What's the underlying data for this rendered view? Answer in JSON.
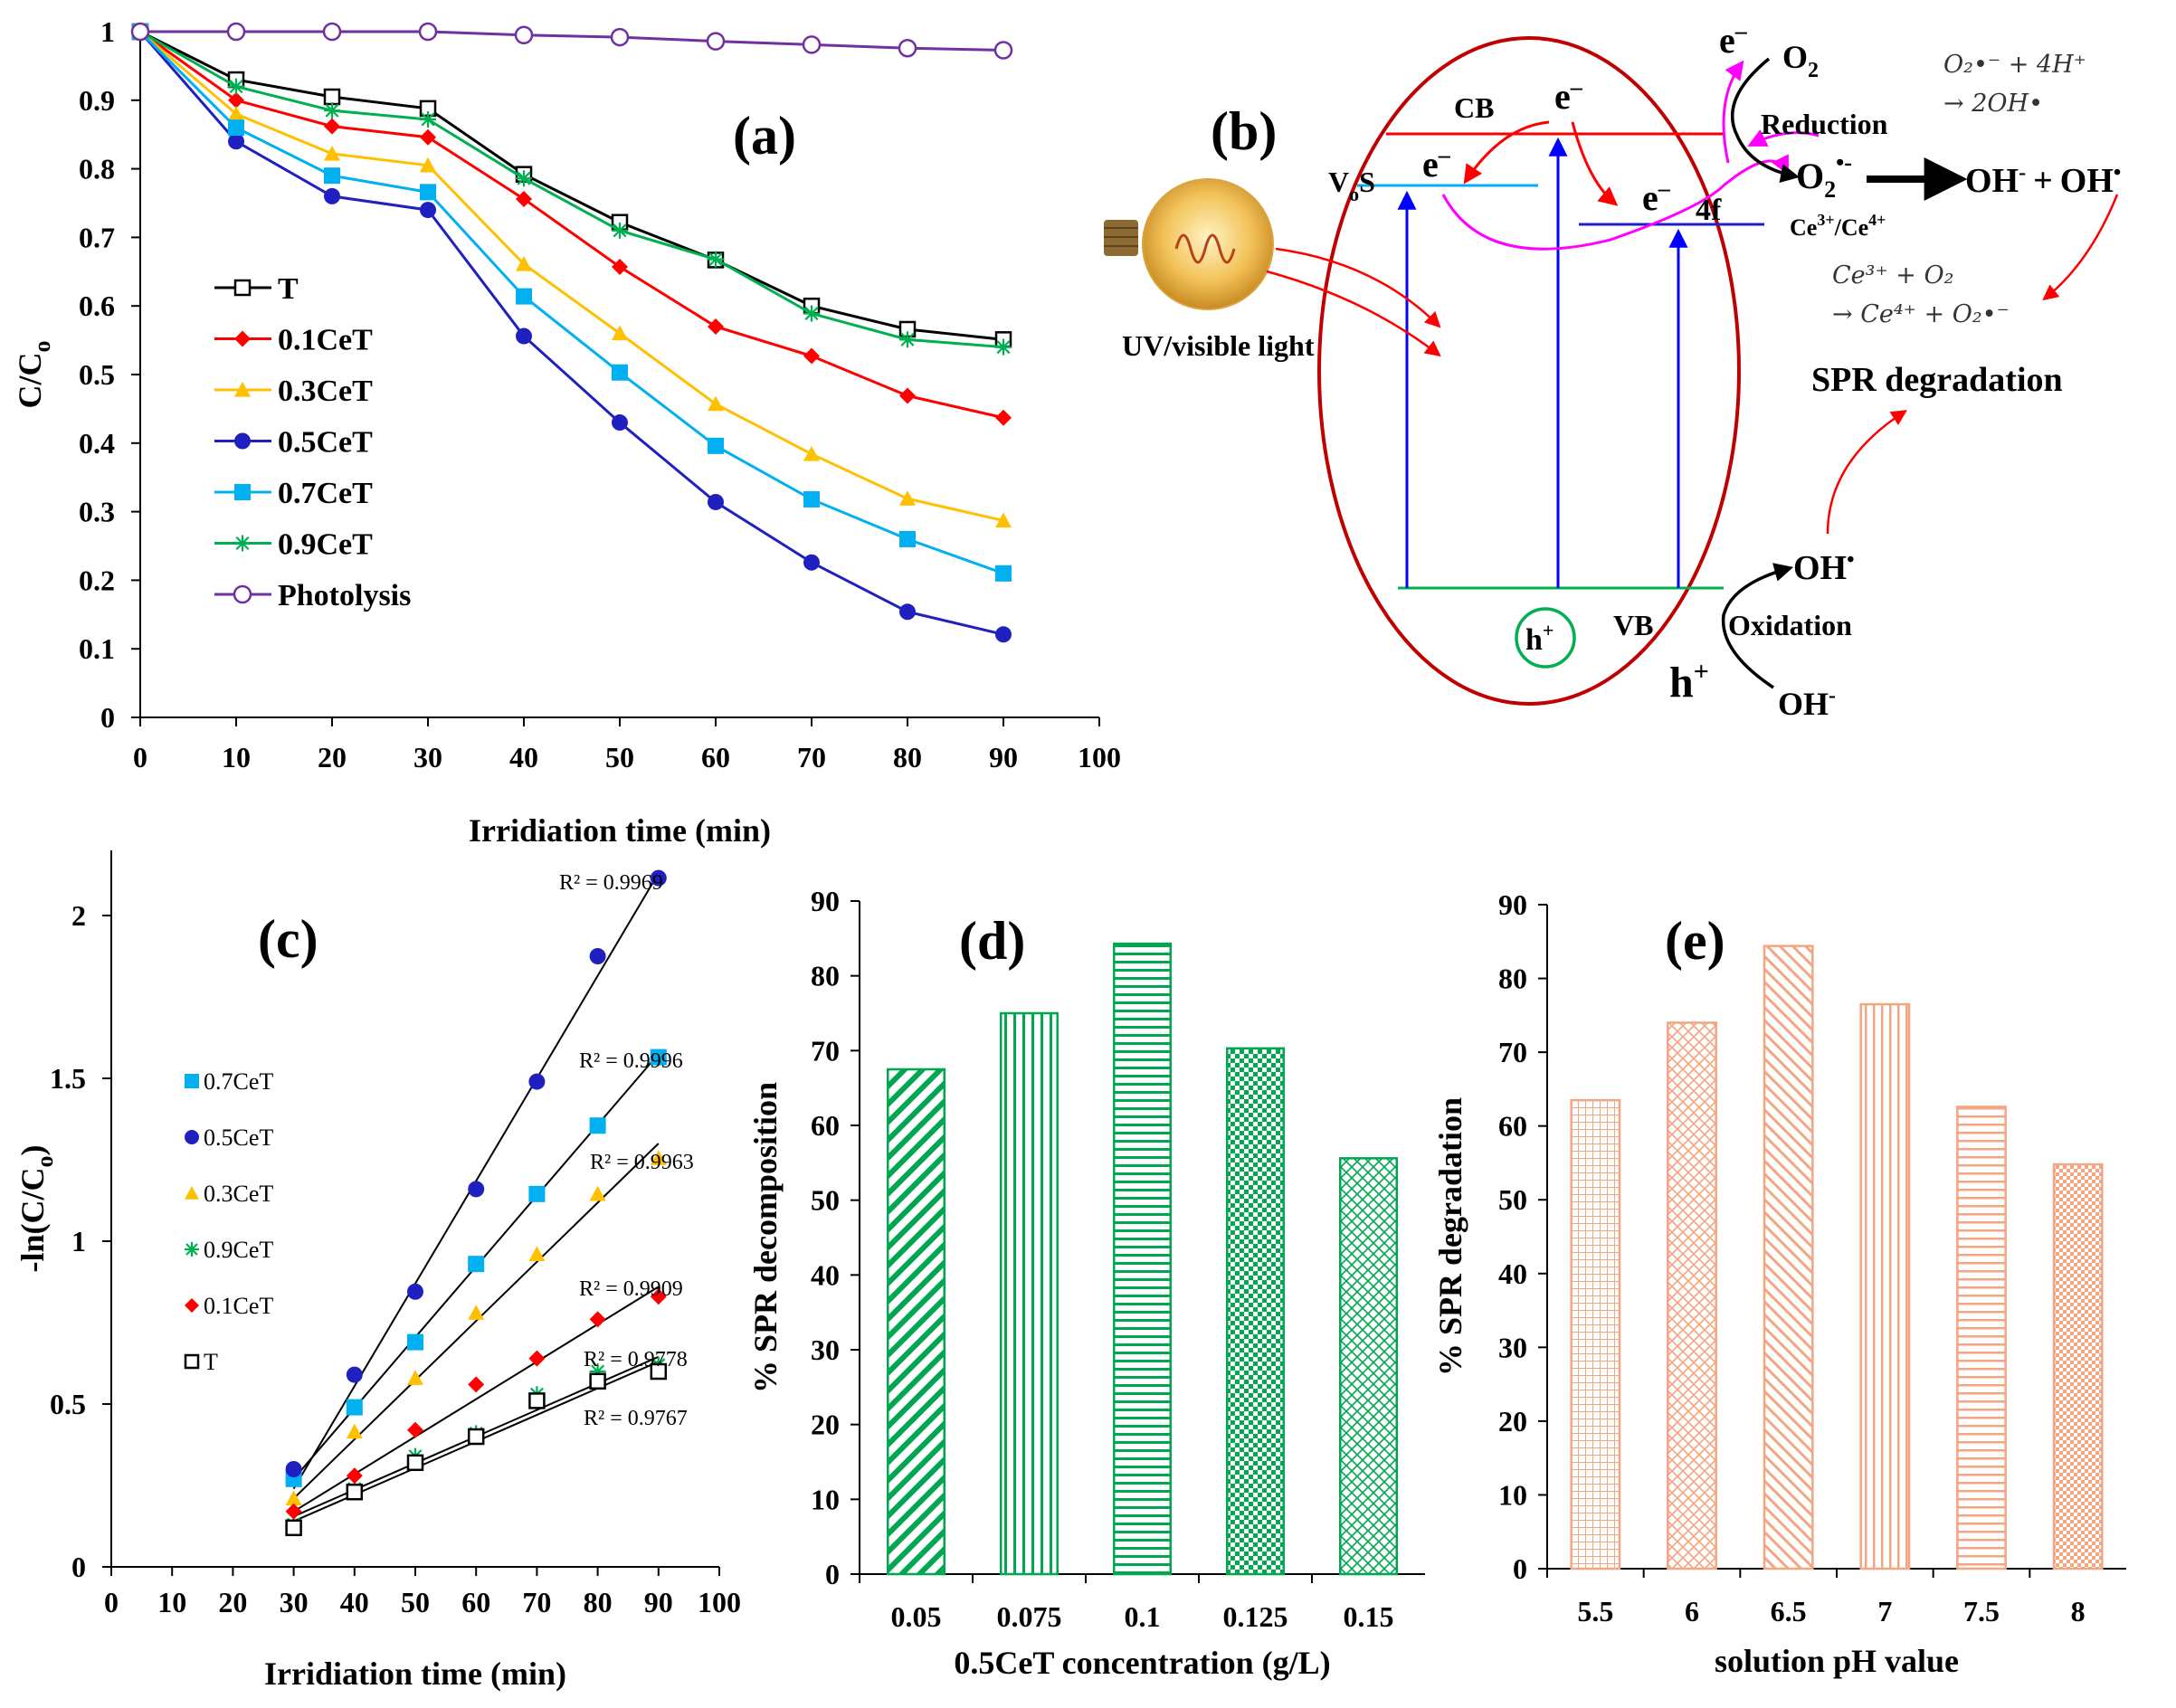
{
  "chart_data": [
    {
      "panel": "(a)",
      "type": "line",
      "xlabel": "Irridiation time (min)",
      "ylabel": "C/Co",
      "xlim": [
        0,
        100
      ],
      "ylim": [
        0,
        1
      ],
      "xticks": [
        0,
        10,
        20,
        30,
        40,
        50,
        60,
        70,
        80,
        90,
        100
      ],
      "yticks": [
        0,
        0.1,
        0.2,
        0.3,
        0.4,
        0.5,
        0.6,
        0.7,
        0.8,
        0.9,
        1
      ],
      "x": [
        0,
        10,
        20,
        30,
        40,
        50,
        60,
        70,
        80,
        90
      ],
      "series": [
        {
          "name": "T",
          "color": "#000000",
          "marker": "open-square",
          "values": [
            1,
            0.93,
            0.905,
            0.888,
            0.792,
            0.722,
            0.667,
            0.6,
            0.566,
            0.551
          ]
        },
        {
          "name": "0.1CeT",
          "color": "#ff0000",
          "marker": "diamond",
          "values": [
            1,
            0.9,
            0.862,
            0.846,
            0.756,
            0.657,
            0.57,
            0.527,
            0.469,
            0.437
          ]
        },
        {
          "name": "0.3CeT",
          "color": "#ffc000",
          "marker": "triangle",
          "values": [
            1,
            0.88,
            0.822,
            0.805,
            0.661,
            0.56,
            0.457,
            0.384,
            0.319,
            0.287
          ]
        },
        {
          "name": "0.5CeT",
          "color": "#2020c0",
          "marker": "circle",
          "values": [
            1,
            0.84,
            0.76,
            0.74,
            0.556,
            0.43,
            0.314,
            0.226,
            0.154,
            0.121
          ]
        },
        {
          "name": "0.7CeT",
          "color": "#00b0f0",
          "marker": "square",
          "values": [
            1,
            0.86,
            0.79,
            0.766,
            0.614,
            0.503,
            0.396,
            0.318,
            0.26,
            0.21
          ]
        },
        {
          "name": "0.9CeT",
          "color": "#00b050",
          "marker": "star",
          "values": [
            1,
            0.92,
            0.885,
            0.872,
            0.786,
            0.71,
            0.668,
            0.589,
            0.551,
            0.54
          ]
        },
        {
          "name": "Photolysis",
          "color": "#7030a0",
          "marker": "open-circle",
          "values": [
            1,
            1,
            1,
            1,
            0.995,
            0.992,
            0.986,
            0.981,
            0.976,
            0.973
          ]
        }
      ],
      "legend": [
        "T",
        "0.1CeT",
        "0.3CeT",
        "0.5CeT",
        "0.7CeT",
        "0.9CeT",
        "Photolysis"
      ],
      "label": "(a)"
    },
    {
      "panel": "(c)",
      "type": "scatter",
      "xlabel": "Irridiation time (min)",
      "ylabel": "-ln(C/Co)",
      "xlim": [
        0,
        100
      ],
      "ylim": [
        0,
        2.2
      ],
      "xticks": [
        0,
        10,
        20,
        30,
        40,
        50,
        60,
        70,
        80,
        90,
        100
      ],
      "yticks": [
        0,
        0.5,
        1,
        1.5,
        2
      ],
      "x": [
        30,
        40,
        50,
        60,
        70,
        80,
        90
      ],
      "series": [
        {
          "name": "0.7CeT",
          "color": "#00b0f0",
          "marker": "square",
          "values": [
            0.27,
            0.49,
            0.69,
            0.93,
            1.145,
            1.355,
            1.565
          ],
          "fit": [
            0.27,
            1.575
          ],
          "r2": "R² = 0.9996"
        },
        {
          "name": "0.5CeT",
          "color": "#2020c0",
          "marker": "circle",
          "values": [
            0.3,
            0.59,
            0.845,
            1.16,
            1.49,
            1.875,
            2.115
          ],
          "fit": [
            0.24,
            2.13
          ],
          "r2": "R² = 0.9969"
        },
        {
          "name": "0.3CeT",
          "color": "#ffc000",
          "marker": "triangle",
          "values": [
            0.21,
            0.415,
            0.58,
            0.78,
            0.96,
            1.145,
            1.255
          ],
          "fit": [
            0.21,
            1.3
          ],
          "r2": "R² = 0.9963"
        },
        {
          "name": "0.9CeT",
          "color": "#00b050",
          "marker": "star",
          "values": [
            0.13,
            0.24,
            0.34,
            0.41,
            0.53,
            0.6,
            0.62
          ],
          "fit": [
            0.155,
            0.645
          ],
          "r2": "R² = 0.9778"
        },
        {
          "name": "0.1CeT",
          "color": "#ff0000",
          "marker": "diamond",
          "values": [
            0.17,
            0.28,
            0.42,
            0.56,
            0.64,
            0.76,
            0.83
          ],
          "fit": [
            0.17,
            0.86
          ],
          "r2": "R² = 0.9909"
        },
        {
          "name": "T",
          "color": "#000000",
          "marker": "open-square",
          "values": [
            0.12,
            0.23,
            0.32,
            0.4,
            0.51,
            0.57,
            0.6
          ],
          "fit": [
            0.14,
            0.63
          ],
          "r2": "R² = 0.9767"
        }
      ],
      "legend": [
        "0.7CeT",
        "0.5CeT",
        "0.3CeT",
        "0.9CeT",
        "0.1CeT",
        "T"
      ],
      "label": "(c)"
    },
    {
      "panel": "(d)",
      "type": "bar",
      "xlabel": "0.5CeT concentration (g/L)",
      "ylabel": "% SPR decomposition",
      "ylim": [
        0,
        90
      ],
      "yticks": [
        0,
        10,
        20,
        30,
        40,
        50,
        60,
        70,
        80,
        90
      ],
      "categories": [
        "0.05",
        "0.075",
        "0.1",
        "0.125",
        "0.15"
      ],
      "values": [
        67.5,
        75,
        84.3,
        70.3,
        55.6
      ],
      "color": "#00a650",
      "patterns": [
        "diag-right",
        "vertical",
        "horizontal",
        "checker",
        "crosshatch"
      ],
      "label": "(d)"
    },
    {
      "panel": "(e)",
      "type": "bar",
      "xlabel": "solution pH value",
      "ylabel": "% SPR degradation",
      "ylim": [
        0,
        90
      ],
      "yticks": [
        0,
        10,
        20,
        30,
        40,
        50,
        60,
        70,
        80,
        90
      ],
      "categories": [
        "5.5",
        "6",
        "6.5",
        "7",
        "7.5",
        "8"
      ],
      "values": [
        63.5,
        74,
        84.4,
        76.5,
        62.6,
        54.8
      ],
      "color": "#f4a582",
      "patterns": [
        "grid-dots",
        "diamond-hatch",
        "diag-left",
        "vertical",
        "horizontal",
        "checker"
      ],
      "label": "(e)"
    }
  ],
  "diagram": {
    "label": "(b)",
    "cb": "CB",
    "vb": "VB",
    "electron": "e",
    "electron_sup": "–",
    "hole": "h",
    "hole_sup": "+",
    "vos": "V",
    "vos_sub": "o",
    "vos_suffix": "S",
    "level_4f": "4f",
    "ce_couple": "Ce",
    "ce3": "3+",
    "ce4": "4+",
    "light": "UV/visible light",
    "o2": "O",
    "o2_sub": "2",
    "reduction": "Reduction",
    "oxidation": "Oxidation",
    "superoxide_sup": "•-",
    "oh_product_a": "OH",
    "oh_product_a_sup": "-",
    "oh_plus": "+",
    "oh_product_b": "OH",
    "oh_product_b_sup": "•",
    "oh_radical": "OH",
    "oh_radical_sup": "•",
    "oh_minus": "OH",
    "oh_minus_sup": "-",
    "spr": "SPR degradation",
    "eq1_line1": "O₂•⁻ + 4H⁺",
    "eq1_line2": "→ 2OH•",
    "eq2_line1": "Ce³⁺ + O₂",
    "eq2_line2": "→ Ce⁴⁺ + O₂•⁻"
  }
}
